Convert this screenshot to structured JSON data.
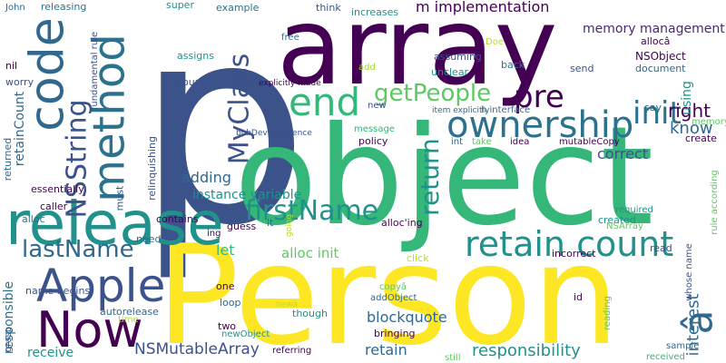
{
  "words": [
    {
      "text": "p",
      "color": "#3b528b",
      "vertical": false
    },
    {
      "text": "array",
      "color": "#440154",
      "vertical": false
    },
    {
      "text": "object",
      "color": "#35b779",
      "vertical": false
    },
    {
      "text": "Person",
      "color": "#fde725",
      "vertical": false
    },
    {
      "text": "release",
      "color": "#21918c",
      "vertical": false
    },
    {
      "text": "code",
      "color": "#31688e",
      "vertical": true
    },
    {
      "text": "method",
      "color": "#2c728e",
      "vertical": true
    },
    {
      "text": "end",
      "color": "#35b779",
      "vertical": false
    },
    {
      "text": "ownership",
      "color": "#2c728e",
      "vertical": false
    },
    {
      "text": "retain count",
      "color": "#21918c",
      "vertical": false
    },
    {
      "text": "Apple",
      "color": "#3b528b",
      "vertical": false
    },
    {
      "text": "Now",
      "color": "#440154",
      "vertical": false
    },
    {
      "text": "â",
      "color": "#31688e",
      "vertical": true
    },
    {
      "text": "init",
      "color": "#2c728e",
      "vertical": false
    },
    {
      "text": "pre",
      "color": "#440154",
      "vertical": false
    },
    {
      "text": "getPeople",
      "color": "#5ec962",
      "vertical": false
    },
    {
      "text": "MyClass",
      "color": "#3b528b",
      "vertical": true
    },
    {
      "text": "NSString",
      "color": "#3b528b",
      "vertical": true
    },
    {
      "text": "return",
      "color": "#21918c",
      "vertical": true
    },
    {
      "text": "firstName",
      "color": "#21918c",
      "vertical": false
    },
    {
      "text": "lastName",
      "color": "#31688e",
      "vertical": false
    },
    {
      "text": "right",
      "color": "#440154",
      "vertical": false
    },
    {
      "text": "know",
      "color": "#31688e",
      "vertical": false
    },
    {
      "text": "m implementation",
      "color": "#440154",
      "vertical": false
    },
    {
      "text": "memory management",
      "color": "#482878",
      "vertical": false
    },
    {
      "text": "adding",
      "color": "#31688e",
      "vertical": false
    },
    {
      "text": "instance variable",
      "color": "#21918c",
      "vertical": false
    },
    {
      "text": "correct",
      "color": "#3b528b",
      "vertical": false
    },
    {
      "text": "let",
      "color": "#35b779",
      "vertical": false
    },
    {
      "text": "alloc init",
      "color": "#5ec962",
      "vertical": false
    },
    {
      "text": "blockquote",
      "color": "#31688e",
      "vertical": false
    },
    {
      "text": "interest",
      "color": "#31688e",
      "vertical": true
    },
    {
      "text": "responsibility",
      "color": "#21918c",
      "vertical": false
    },
    {
      "text": "retain",
      "color": "#31688e",
      "vertical": false
    },
    {
      "text": "NSMutableArray",
      "color": "#3b528b",
      "vertical": false
    },
    {
      "text": "receive",
      "color": "#21918c",
      "vertical": false
    },
    {
      "text": "responsible",
      "color": "#2c728e",
      "vertical": true
    },
    {
      "text": "using",
      "color": "#21918c",
      "vertical": true
    },
    {
      "text": "retainCount",
      "color": "#31688e",
      "vertical": true
    },
    {
      "text": "NSObject",
      "color": "#440154",
      "vertical": false
    },
    {
      "text": "allocâ",
      "color": "#440154",
      "vertical": false
    },
    {
      "text": "assigns",
      "color": "#21918c",
      "vertical": false
    },
    {
      "text": "count",
      "color": "#3b528b",
      "vertical": false
    },
    {
      "text": "super",
      "color": "#21918c",
      "vertical": false
    },
    {
      "text": "example",
      "color": "#2c728e",
      "vertical": false
    },
    {
      "text": "think",
      "color": "#3b528b",
      "vertical": false
    },
    {
      "text": "increases",
      "color": "#21918c",
      "vertical": false
    },
    {
      "text": "Doe",
      "color": "#b5de2b",
      "vertical": false
    },
    {
      "text": "John",
      "color": "#31688e",
      "vertical": false
    },
    {
      "text": "releasing",
      "color": "#2c728e",
      "vertical": false
    },
    {
      "text": "nil",
      "color": "#440154",
      "vertical": false
    },
    {
      "text": "worry",
      "color": "#3b528b",
      "vertical": false
    },
    {
      "text": "fundamental rule",
      "color": "#3b528b",
      "vertical": true
    },
    {
      "text": "free",
      "color": "#2c728e",
      "vertical": false
    },
    {
      "text": "explicitly made",
      "color": "#440154",
      "vertical": false
    },
    {
      "text": "assuming",
      "color": "#3b528b",
      "vertical": false
    },
    {
      "text": "unclear",
      "color": "#21918c",
      "vertical": false
    },
    {
      "text": "back",
      "color": "#2c728e",
      "vertical": false
    },
    {
      "text": "send",
      "color": "#3b528b",
      "vertical": false
    },
    {
      "text": "document",
      "color": "#31688e",
      "vertical": false
    },
    {
      "text": "add",
      "color": "#a0da39",
      "vertical": false
    },
    {
      "text": "item explicitly",
      "color": "#31688e",
      "vertical": false
    },
    {
      "text": "h interface",
      "color": "#31688e",
      "vertical": false
    },
    {
      "text": "say",
      "color": "#31688e",
      "vertical": false
    },
    {
      "text": "memory",
      "color": "#5ec962",
      "vertical": false
    },
    {
      "text": "message",
      "color": "#35b779",
      "vertical": false
    },
    {
      "text": "policy",
      "color": "#440154",
      "vertical": false
    },
    {
      "text": "int",
      "color": "#31688e",
      "vertical": false
    },
    {
      "text": "take",
      "color": "#5ec962",
      "vertical": false
    },
    {
      "text": "idea",
      "color": "#440154",
      "vertical": false
    },
    {
      "text": "mutableCopy",
      "color": "#440154",
      "vertical": false
    },
    {
      "text": "create",
      "color": "#440154",
      "vertical": false
    },
    {
      "text": "bobDevil sentence",
      "color": "#3b528b",
      "vertical": false
    },
    {
      "text": "relinquishing",
      "color": "#3b528b",
      "vertical": true
    },
    {
      "text": "returned",
      "color": "#31688e",
      "vertical": true
    },
    {
      "text": "essentially",
      "color": "#440154",
      "vertical": false
    },
    {
      "text": "guess",
      "color": "#440154",
      "vertical": false
    },
    {
      "text": "ing",
      "color": "#440154",
      "vertical": false
    },
    {
      "text": "caller",
      "color": "#440154",
      "vertical": false
    },
    {
      "text": "alloc",
      "color": "#2c728e",
      "vertical": false
    },
    {
      "text": "contains",
      "color": "#440154",
      "vertical": false
    },
    {
      "text": "must",
      "color": "#3b528b",
      "vertical": true
    },
    {
      "text": "lt",
      "color": "#2c728e",
      "vertical": false
    },
    {
      "text": "going",
      "color": "#b5de2b",
      "vertical": true
    },
    {
      "text": "alloc'ing",
      "color": "#440154",
      "vertical": false
    },
    {
      "text": "created",
      "color": "#21918c",
      "vertical": false
    },
    {
      "text": "required",
      "color": "#21918c",
      "vertical": false
    },
    {
      "text": "NSArray",
      "color": "#5ec962",
      "vertical": false
    },
    {
      "text": "rule according",
      "color": "#5ec962",
      "vertical": true
    },
    {
      "text": "need",
      "color": "#31688e",
      "vertical": false
    },
    {
      "text": "name begins",
      "color": "#3b528b",
      "vertical": false
    },
    {
      "text": "newâ",
      "color": "#b5de2b",
      "vertical": false
    },
    {
      "text": "click",
      "color": "#b5de2b",
      "vertical": false
    },
    {
      "text": "incorrect",
      "color": "#440154",
      "vertical": false
    },
    {
      "text": "read",
      "color": "#3b528b",
      "vertical": false
    },
    {
      "text": "whose name",
      "color": "#3b528b",
      "vertical": true
    },
    {
      "text": "one",
      "color": "#440154",
      "vertical": false
    },
    {
      "text": "loop",
      "color": "#31688e",
      "vertical": false
    },
    {
      "text": "copyâ",
      "color": "#5ec962",
      "vertical": false
    },
    {
      "text": "addObject",
      "color": "#31688e",
      "vertical": false
    },
    {
      "text": "id",
      "color": "#440154",
      "vertical": false
    },
    {
      "text": "reading",
      "color": "#5ec962",
      "vertical": true
    },
    {
      "text": "autorelease",
      "color": "#31688e",
      "vertical": false
    },
    {
      "text": "time",
      "color": "#b5de2b",
      "vertical": false
    },
    {
      "text": "though",
      "color": "#21918c",
      "vertical": false
    },
    {
      "text": "bringing",
      "color": "#440154",
      "vertical": false
    },
    {
      "text": "two",
      "color": "#440154",
      "vertical": false
    },
    {
      "text": "newObject",
      "color": "#21918c",
      "vertical": false
    },
    {
      "text": "grasp",
      "color": "#3b528b",
      "vertical": true
    },
    {
      "text": "referring",
      "color": "#440154",
      "vertical": false
    },
    {
      "text": "still",
      "color": "#5ec962",
      "vertical": false
    },
    {
      "text": "sample",
      "color": "#31688e",
      "vertical": false
    },
    {
      "text": "received",
      "color": "#35b779",
      "vertical": false
    },
    {
      "text": "new",
      "color": "#3b528b",
      "vertical": false
    }
  ]
}
